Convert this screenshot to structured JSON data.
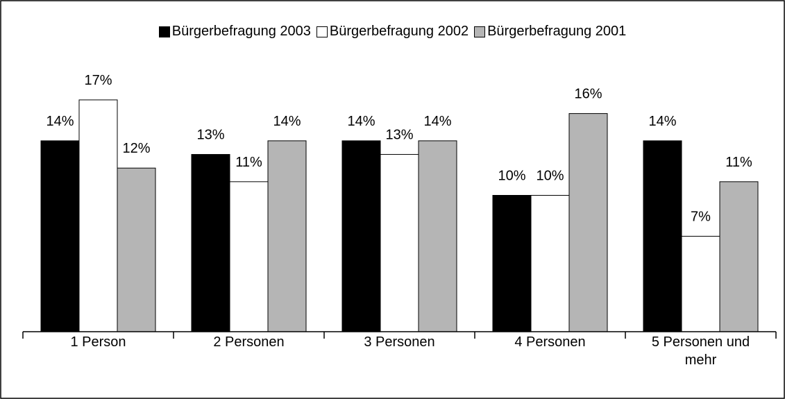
{
  "chart_data": {
    "type": "bar",
    "categories": [
      "1 Person",
      "2 Personen",
      "3 Personen",
      "4 Personen",
      "5 Personen und mehr"
    ],
    "series": [
      {
        "name": "Bürgerbefragung 2003",
        "color": "#000000",
        "values": [
          14,
          13,
          14,
          10,
          14
        ],
        "value_labels": [
          "14%",
          "13%",
          "14%",
          "10%",
          "14%"
        ]
      },
      {
        "name": "Bürgerbefragung 2002",
        "color": "#ffffff",
        "values": [
          17,
          11,
          13,
          10,
          7
        ],
        "value_labels": [
          "17%",
          "11%",
          "13%",
          "10%",
          "7%"
        ]
      },
      {
        "name": "Bürgerbefragung 2001",
        "color": "#b5b5b5",
        "values": [
          12,
          14,
          14,
          16,
          11
        ],
        "value_labels": [
          "12%",
          "14%",
          "14%",
          "16%",
          "11%"
        ]
      }
    ],
    "ylim": [
      0,
      20
    ],
    "legend": "top"
  }
}
